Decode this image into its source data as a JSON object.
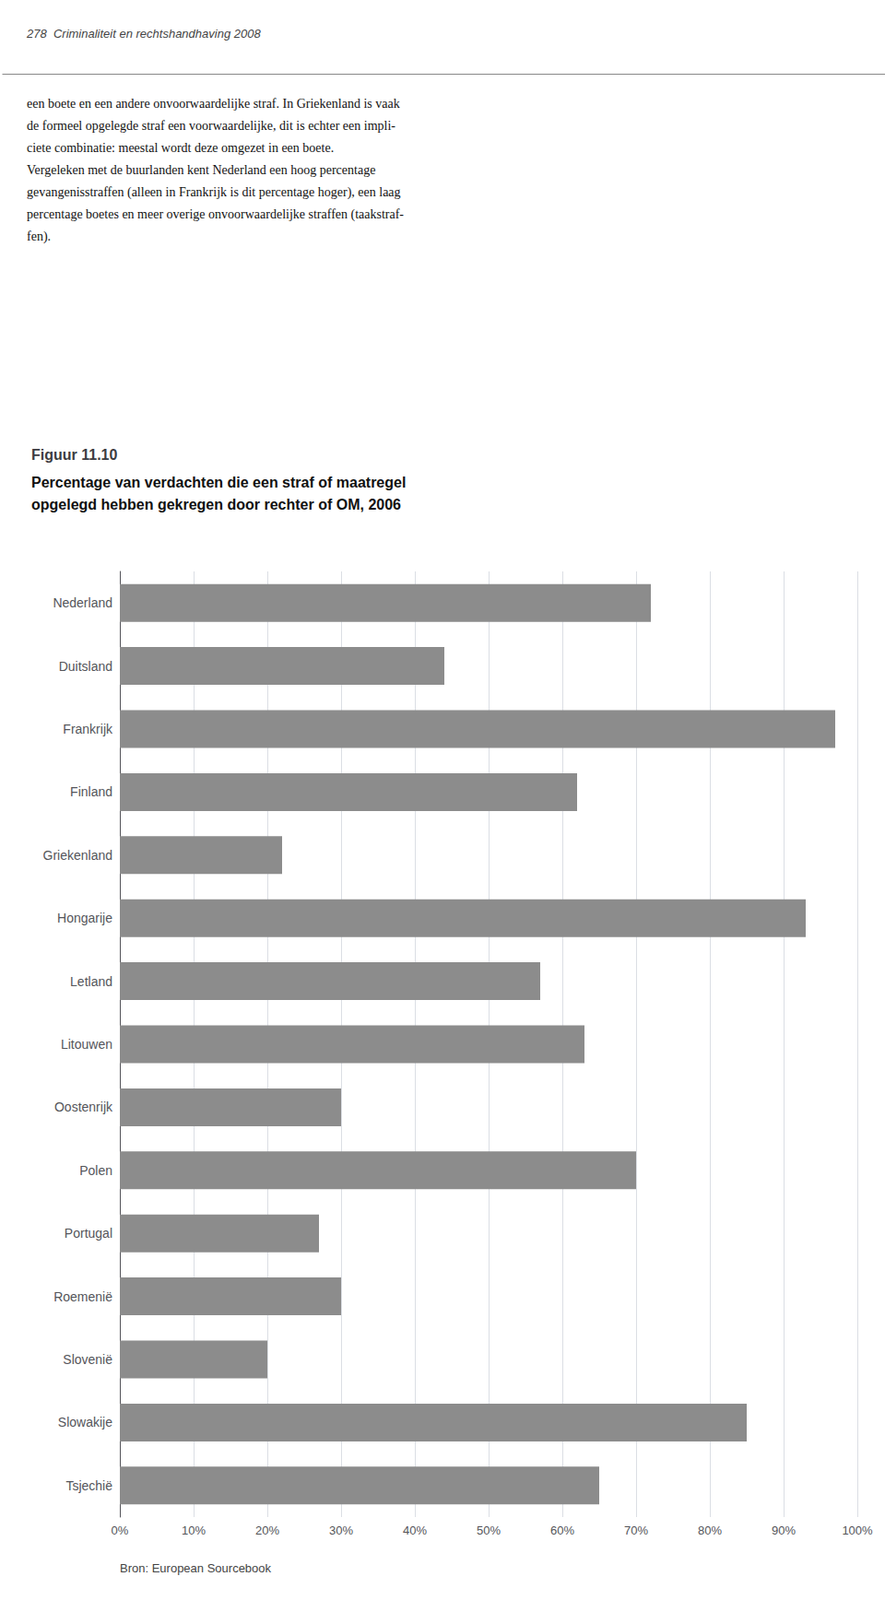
{
  "chart_data": {
    "type": "bar",
    "orientation": "horizontal",
    "title": "Figuur 11.10",
    "subtitle": "Percentage van verdachten die een straf of maatregel\nopgelegd hebben gekregen door rechter of OM, 2006",
    "annotations": [
      "278  Criminaliteit en rechtshandhaving 2008",
      "een boete en een andere onvoorwaardelijke straf. In Griekenland is vaak\nde formeel opgelegde straf een voorwaardelijke, dit is echter een impli-\nciete combinatie: meestal wordt deze omgezet in een boete.\nVergeleken met de buurlanden kent Nederland een hoog percentage\ngevangenisstraffen (alleen in Frankrijk is dit percentage hoger), een laag\npercentage boetes en meer overige onvoorwaardelijke straffen (taakstraf-\nfen).",
      "Bron: European Sourcebook"
    ],
    "categories": [
      "Nederland",
      "Duitsland",
      "Frankrijk",
      "Finland",
      "Griekenland",
      "Hongarije",
      "Letland",
      "Litouwen",
      "Oostenrijk",
      "Polen",
      "Portugal",
      "Roemenië",
      "Slovenië",
      "Slowakije",
      "Tsjechië"
    ],
    "values": [
      72,
      44,
      97,
      62,
      22,
      93,
      57,
      63,
      30,
      70,
      27,
      30,
      20,
      85,
      65
    ],
    "color": "#8C8C8C",
    "xlim": [
      0,
      100
    ],
    "xticks": [
      {
        "value": 0,
        "label": "0%"
      },
      {
        "value": 10,
        "label": "10%"
      },
      {
        "value": 20,
        "label": "20%"
      },
      {
        "value": 30,
        "label": "30%"
      },
      {
        "value": 40,
        "label": "40%"
      },
      {
        "value": 50,
        "label": "50%"
      },
      {
        "value": 60,
        "label": "60%"
      },
      {
        "value": 70,
        "label": "70%"
      },
      {
        "value": 80,
        "label": "80%"
      },
      {
        "value": 90,
        "label": "90%"
      },
      {
        "value": 100,
        "label": "100%"
      }
    ],
    "grid": true
  }
}
